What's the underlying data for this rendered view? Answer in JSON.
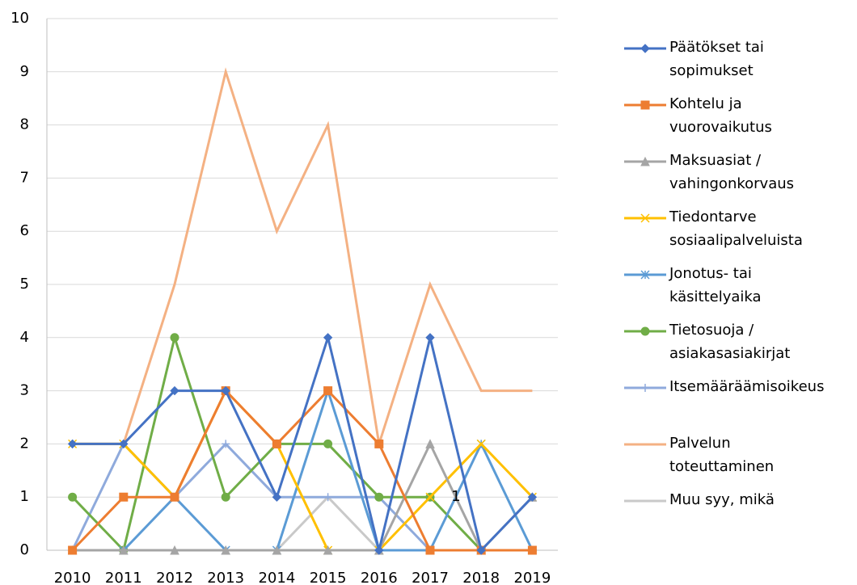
{
  "chart_data": {
    "type": "line",
    "categories": [
      "2010",
      "2011",
      "2012",
      "2013",
      "2014",
      "2015",
      "2016",
      "2017",
      "2018",
      "2019"
    ],
    "ylim": [
      0,
      10
    ],
    "yticks": [
      0,
      1,
      2,
      3,
      4,
      5,
      6,
      7,
      8,
      9,
      10
    ],
    "grid": true,
    "legend": "right",
    "series": [
      {
        "name": "Päätökset tai sopimukset",
        "color": "#4472c4",
        "marker": "diamond",
        "values": [
          2,
          2,
          3,
          3,
          1,
          4,
          0,
          4,
          0,
          1
        ]
      },
      {
        "name": "Kohtelu ja vuorovaikutus",
        "color": "#ed7d31",
        "marker": "square",
        "values": [
          0,
          1,
          1,
          3,
          2,
          3,
          2,
          0,
          0,
          0
        ]
      },
      {
        "name": "Maksuasiat / vahingonkorvaus",
        "color": "#a5a5a5",
        "marker": "triangle",
        "values": [
          0,
          0,
          0,
          0,
          0,
          0,
          0,
          2,
          0,
          1
        ]
      },
      {
        "name": "Tiedontarve sosiaalipalveluista",
        "color": "#ffc000",
        "marker": "x",
        "values": [
          2,
          2,
          1,
          3,
          2,
          0,
          0,
          1,
          2,
          1
        ]
      },
      {
        "name": "Jonotus- tai käsittelyaika",
        "color": "#5b9bd5",
        "marker": "star",
        "values": [
          0,
          0,
          1,
          0,
          0,
          3,
          0,
          0,
          2,
          0
        ]
      },
      {
        "name": "Tietosuoja / asiakasasiakirjat",
        "color": "#70ad47",
        "marker": "circle",
        "values": [
          1,
          0,
          4,
          1,
          2,
          2,
          1,
          1,
          0,
          0
        ]
      },
      {
        "name": "Itsemääräämisoikeus",
        "color": "#8faadc",
        "marker": "plus",
        "values": [
          0,
          2,
          1,
          2,
          1,
          1,
          1,
          0,
          0,
          0
        ]
      },
      {
        "name": "Palvelun toteuttaminen",
        "color": "#f4b183",
        "marker": "none",
        "values": [
          2,
          2,
          5,
          9,
          6,
          8,
          2,
          5,
          3,
          3
        ]
      },
      {
        "name": "Muu syy, mikä",
        "color": "#c9c9c9",
        "marker": "none",
        "values": [
          0,
          0,
          0,
          0,
          0,
          1,
          0,
          0,
          0,
          0
        ]
      }
    ],
    "annotations": [
      {
        "text": "1",
        "x": "2017",
        "y": 1
      }
    ]
  }
}
